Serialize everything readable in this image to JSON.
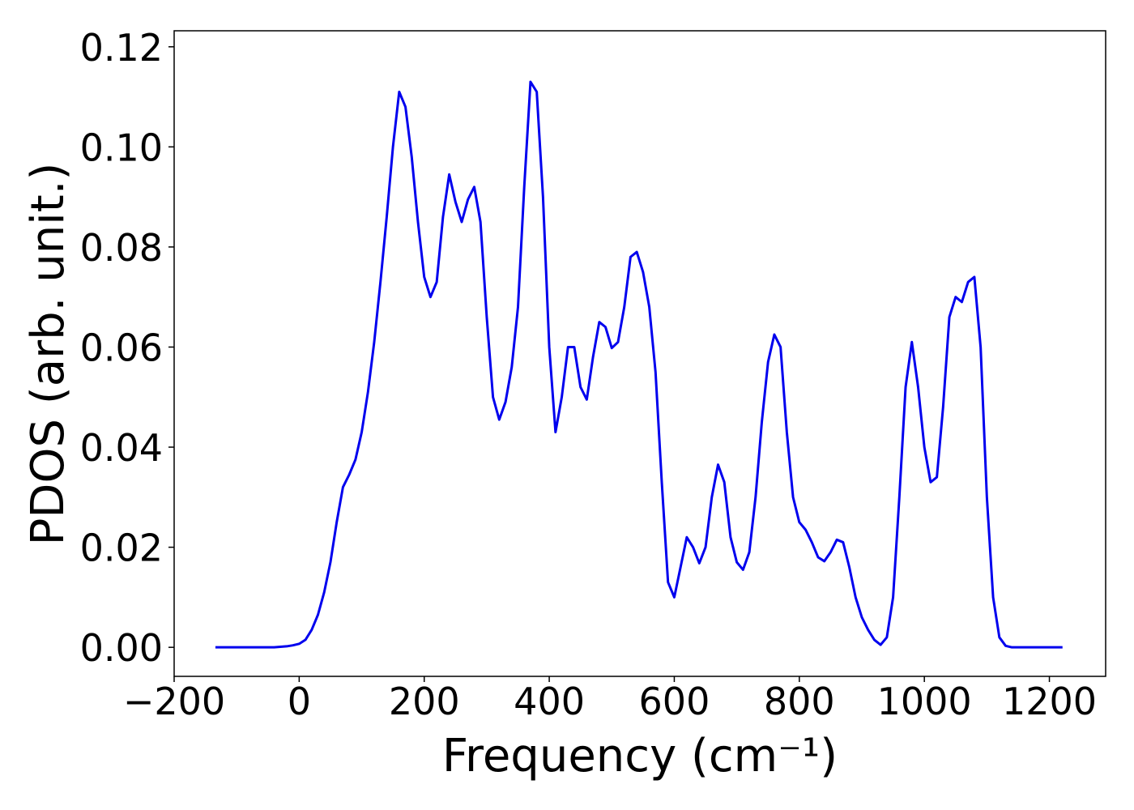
{
  "chart_data": {
    "type": "line",
    "x_label": "Frequency (cm⁻¹)",
    "y_label": "PDOS (arb. unit.)",
    "x": [
      -134,
      -40,
      -30,
      -20,
      -10,
      0,
      10,
      20,
      30,
      40,
      50,
      60,
      70,
      80,
      90,
      100,
      110,
      120,
      130,
      140,
      150,
      160,
      170,
      180,
      190,
      200,
      210,
      220,
      230,
      240,
      250,
      260,
      270,
      280,
      290,
      300,
      310,
      320,
      330,
      340,
      350,
      360,
      370,
      380,
      390,
      400,
      410,
      420,
      430,
      440,
      450,
      460,
      470,
      480,
      490,
      500,
      510,
      520,
      530,
      540,
      550,
      560,
      570,
      580,
      590,
      600,
      610,
      620,
      630,
      640,
      650,
      660,
      670,
      680,
      690,
      700,
      710,
      720,
      730,
      740,
      750,
      760,
      770,
      780,
      790,
      800,
      810,
      820,
      830,
      840,
      850,
      860,
      870,
      880,
      890,
      900,
      910,
      920,
      930,
      940,
      950,
      960,
      970,
      980,
      990,
      1000,
      1010,
      1020,
      1030,
      1040,
      1050,
      1060,
      1070,
      1080,
      1090,
      1100,
      1110,
      1120,
      1130,
      1140,
      1150,
      1221
    ],
    "series": [
      {
        "name": "PDOS",
        "color": "#0000ee",
        "values": [
          0,
          0,
          0.0001,
          0.0002,
          0.0004,
          0.0007,
          0.0015,
          0.0035,
          0.0065,
          0.011,
          0.017,
          0.025,
          0.032,
          0.0345,
          0.0375,
          0.043,
          0.051,
          0.061,
          0.073,
          0.086,
          0.1,
          0.111,
          0.108,
          0.098,
          0.085,
          0.074,
          0.07,
          0.073,
          0.086,
          0.0945,
          0.089,
          0.085,
          0.0895,
          0.092,
          0.085,
          0.066,
          0.05,
          0.0455,
          0.049,
          0.056,
          0.068,
          0.092,
          0.113,
          0.111,
          0.09,
          0.06,
          0.043,
          0.05,
          0.06,
          0.06,
          0.052,
          0.0495,
          0.058,
          0.065,
          0.064,
          0.0598,
          0.061,
          0.068,
          0.078,
          0.079,
          0.075,
          0.068,
          0.055,
          0.033,
          0.013,
          0.01,
          0.016,
          0.022,
          0.02,
          0.0168,
          0.02,
          0.03,
          0.0365,
          0.033,
          0.022,
          0.017,
          0.0155,
          0.019,
          0.03,
          0.045,
          0.057,
          0.0625,
          0.06,
          0.043,
          0.03,
          0.025,
          0.0235,
          0.021,
          0.018,
          0.0172,
          0.019,
          0.0215,
          0.021,
          0.016,
          0.01,
          0.006,
          0.0035,
          0.0015,
          0.0005,
          0.002,
          0.01,
          0.03,
          0.052,
          0.061,
          0.052,
          0.04,
          0.033,
          0.034,
          0.048,
          0.066,
          0.07,
          0.069,
          0.073,
          0.074,
          0.06,
          0.03,
          0.01,
          0.002,
          0.0003,
          0,
          0,
          0
        ]
      }
    ],
    "xlim": [
      -200,
      1290
    ],
    "ylim": [
      -0.0058,
      0.1232
    ],
    "xticks": [
      {
        "value": -200,
        "label": "−200"
      },
      0,
      200,
      400,
      600,
      800,
      1000,
      1200
    ],
    "yticks": [
      {
        "value": 0,
        "label": "0.00"
      },
      {
        "value": 0.02,
        "label": "0.02"
      },
      {
        "value": 0.04,
        "label": "0.04"
      },
      {
        "value": 0.06,
        "label": "0.06"
      },
      {
        "value": 0.08,
        "label": "0.08"
      },
      {
        "value": 0.1,
        "label": "0.10"
      },
      {
        "value": 0.12,
        "label": "0.12"
      }
    ]
  }
}
